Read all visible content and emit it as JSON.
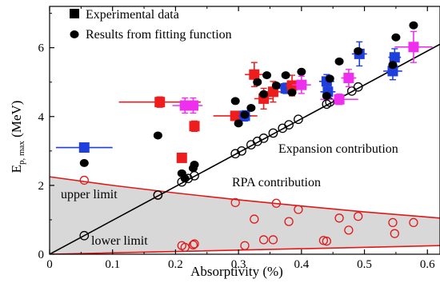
{
  "chart_data": {
    "type": "scatter",
    "xlabel": "Absorptivity (%)",
    "ylabel": "E",
    "ylabel_sub": "p, max",
    "ylabel_unit": " (MeV)",
    "xlim": [
      0,
      0.62
    ],
    "ylim": [
      0,
      7.2
    ],
    "xticks": [
      0,
      0.1,
      0.2,
      0.3,
      0.4,
      0.5,
      0.6
    ],
    "xtick_labels": [
      "0",
      "0.1",
      "0.2",
      "0.3",
      "0.4",
      "0.5",
      "0.6"
    ],
    "yticks": [
      0,
      2,
      4,
      6
    ],
    "ytick_labels": [
      "0",
      "2",
      "4",
      "6"
    ],
    "legend": [
      {
        "label": "Experimental data",
        "marker": "square"
      },
      {
        "label": "Results from fitting function",
        "marker": "dot"
      }
    ],
    "annotations": {
      "expansion": "Expansion contribution",
      "rpa": "RPA contribution",
      "upper": "upper limit",
      "lower": "lower limit"
    },
    "colors": {
      "red": "#ee1c1c",
      "blue": "#1f3fdd",
      "magenta": "#ee30ee",
      "black": "#000000",
      "band": "#d8d8d8",
      "rpa_line": "#e01818"
    },
    "experimental": [
      {
        "x": 0.055,
        "y": 3.1,
        "c": "blue",
        "xerr": 0.045,
        "yerr": 0.08
      },
      {
        "x": 0.175,
        "y": 4.42,
        "c": "red",
        "xerr": 0.065,
        "yerr": 0.15
      },
      {
        "x": 0.21,
        "y": 2.8,
        "c": "red",
        "xerr": 0,
        "yerr": 0
      },
      {
        "x": 0.215,
        "y": 4.32,
        "c": "magenta",
        "xerr": 0.02,
        "yerr": 0.22
      },
      {
        "x": 0.228,
        "y": 4.32,
        "c": "magenta",
        "xerr": 0.015,
        "yerr": 0.22
      },
      {
        "x": 0.23,
        "y": 3.72,
        "c": "red",
        "xerr": 0,
        "yerr": 0.15
      },
      {
        "x": 0.295,
        "y": 4.02,
        "c": "red",
        "xerr": 0.035,
        "yerr": 0.12
      },
      {
        "x": 0.31,
        "y": 4.02,
        "c": "blue",
        "xerr": 0.01,
        "yerr": 0.15
      },
      {
        "x": 0.325,
        "y": 5.22,
        "c": "red",
        "xerr": 0.015,
        "yerr": 0.35
      },
      {
        "x": 0.34,
        "y": 4.52,
        "c": "red",
        "xerr": 0.015,
        "yerr": 0.3
      },
      {
        "x": 0.355,
        "y": 4.72,
        "c": "red",
        "xerr": 0.015,
        "yerr": 0.3
      },
      {
        "x": 0.375,
        "y": 4.82,
        "c": "blue",
        "xerr": 0.02,
        "yerr": 0.15
      },
      {
        "x": 0.385,
        "y": 4.9,
        "c": "red",
        "xerr": 0.01,
        "yerr": 0.3
      },
      {
        "x": 0.4,
        "y": 4.92,
        "c": "magenta",
        "xerr": 0.015,
        "yerr": 0.25
      },
      {
        "x": 0.44,
        "y": 5.02,
        "c": "blue",
        "xerr": 0.012,
        "yerr": 0.2
      },
      {
        "x": 0.442,
        "y": 4.72,
        "c": "blue",
        "xerr": 0.012,
        "yerr": 0.2
      },
      {
        "x": 0.46,
        "y": 4.5,
        "c": "magenta",
        "xerr": 0.03,
        "yerr": 0.15
      },
      {
        "x": 0.475,
        "y": 5.12,
        "c": "magenta",
        "xerr": 0.012,
        "yerr": 0.25
      },
      {
        "x": 0.492,
        "y": 5.82,
        "c": "blue",
        "xerr": 0.012,
        "yerr": 0.35
      },
      {
        "x": 0.545,
        "y": 5.32,
        "c": "blue",
        "xerr": 0.015,
        "yerr": 0.25
      },
      {
        "x": 0.548,
        "y": 5.72,
        "c": "blue",
        "xerr": 0.01,
        "yerr": 0.25
      },
      {
        "x": 0.578,
        "y": 6.02,
        "c": "magenta",
        "xerr": 0.03,
        "yerr": 0.45
      }
    ],
    "fitting": [
      [
        0.055,
        2.65
      ],
      [
        0.172,
        3.45
      ],
      [
        0.21,
        2.35
      ],
      [
        0.215,
        2.2
      ],
      [
        0.228,
        2.5
      ],
      [
        0.23,
        2.6
      ],
      [
        0.295,
        4.45
      ],
      [
        0.3,
        3.8
      ],
      [
        0.31,
        4.05
      ],
      [
        0.32,
        4.25
      ],
      [
        0.33,
        5.0
      ],
      [
        0.34,
        4.65
      ],
      [
        0.345,
        5.2
      ],
      [
        0.36,
        4.9
      ],
      [
        0.375,
        5.2
      ],
      [
        0.385,
        4.7
      ],
      [
        0.4,
        5.3
      ],
      [
        0.44,
        4.6
      ],
      [
        0.445,
        5.1
      ],
      [
        0.46,
        5.6
      ],
      [
        0.49,
        5.9
      ],
      [
        0.545,
        5.5
      ],
      [
        0.55,
        6.3
      ],
      [
        0.578,
        6.65
      ]
    ],
    "expansion_line": {
      "x0": 0,
      "y0": 0,
      "x1": 0.62,
      "y1": 6.1
    },
    "expansion_circles": [
      [
        0.055,
        0.54
      ],
      [
        0.172,
        1.72
      ],
      [
        0.21,
        2.1
      ],
      [
        0.22,
        2.2
      ],
      [
        0.23,
        2.28
      ],
      [
        0.295,
        2.92
      ],
      [
        0.305,
        3.0
      ],
      [
        0.32,
        3.18
      ],
      [
        0.33,
        3.28
      ],
      [
        0.34,
        3.37
      ],
      [
        0.355,
        3.52
      ],
      [
        0.37,
        3.66
      ],
      [
        0.38,
        3.76
      ],
      [
        0.395,
        3.92
      ],
      [
        0.44,
        4.36
      ],
      [
        0.445,
        4.42
      ],
      [
        0.48,
        4.74
      ],
      [
        0.49,
        4.86
      ]
    ],
    "upper_limit": [
      [
        0,
        2.25
      ],
      [
        0.1,
        2.0
      ],
      [
        0.2,
        1.78
      ],
      [
        0.3,
        1.58
      ],
      [
        0.4,
        1.4
      ],
      [
        0.5,
        1.23
      ],
      [
        0.62,
        1.05
      ]
    ],
    "lower_limit": [
      [
        0,
        0.0
      ],
      [
        0.2,
        0.08
      ],
      [
        0.4,
        0.16
      ],
      [
        0.62,
        0.25
      ]
    ],
    "rpa_circles": [
      [
        0.055,
        2.15
      ],
      [
        0.172,
        1.72
      ],
      [
        0.21,
        0.25
      ],
      [
        0.215,
        0.2
      ],
      [
        0.228,
        0.27
      ],
      [
        0.23,
        0.3
      ],
      [
        0.295,
        1.5
      ],
      [
        0.31,
        0.25
      ],
      [
        0.325,
        1.02
      ],
      [
        0.34,
        0.42
      ],
      [
        0.355,
        0.42
      ],
      [
        0.36,
        1.48
      ],
      [
        0.38,
        0.95
      ],
      [
        0.395,
        1.3
      ],
      [
        0.435,
        0.4
      ],
      [
        0.44,
        0.38
      ],
      [
        0.46,
        1.05
      ],
      [
        0.475,
        0.7
      ],
      [
        0.49,
        1.1
      ],
      [
        0.545,
        0.92
      ],
      [
        0.548,
        0.6
      ],
      [
        0.578,
        0.92
      ]
    ]
  }
}
